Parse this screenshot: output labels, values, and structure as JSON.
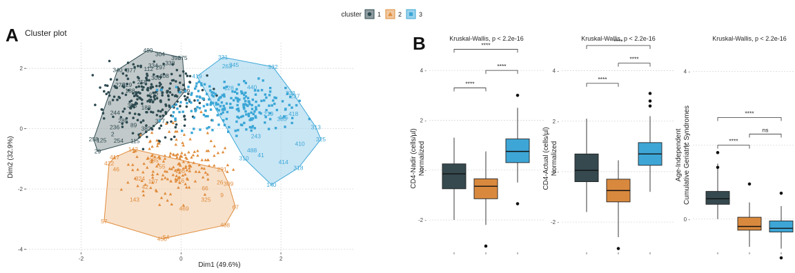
{
  "panels": {
    "a": "A",
    "b": "B"
  },
  "legend": {
    "title": "cluster",
    "items": [
      "1",
      "2",
      "3"
    ]
  },
  "colors": {
    "c1": "#2d4a50",
    "c2": "#e08b3a",
    "c3": "#3aa6d6",
    "fill1": "#8f9c9f",
    "fill2": "#f0c8a0",
    "fill3": "#9cd2ec",
    "box1": "#35494f",
    "box2": "#d9893e",
    "box3": "#3ea6d6"
  },
  "chart_data": [
    {
      "type": "scatter",
      "title": "Cluster plot",
      "xlabel": "Dim1 (49.6%)",
      "ylabel": "Dim2 (32.9%)",
      "xlim": [
        -3.1,
        3.45
      ],
      "ylim": [
        -4.1,
        2.85
      ],
      "xticks": [
        -2,
        0,
        2
      ],
      "yticks": [
        -4,
        -2,
        0,
        2
      ],
      "grid": true,
      "series": [
        {
          "name": "1",
          "marker": "circle",
          "labels": [
            {
              "t": "499",
              "x": -0.66,
              "y": 2.6
            },
            {
              "t": "304",
              "x": -0.42,
              "y": 2.47
            },
            {
              "t": "398",
              "x": -0.1,
              "y": 2.35
            },
            {
              "t": "375",
              "x": 0.03,
              "y": 2.35
            },
            {
              "t": "340",
              "x": -1.27,
              "y": 1.95
            },
            {
              "t": "377",
              "x": -1.0,
              "y": 1.93
            },
            {
              "t": "112",
              "x": -0.65,
              "y": 1.98
            },
            {
              "t": "334",
              "x": -0.56,
              "y": 2.1
            },
            {
              "t": "297",
              "x": -0.41,
              "y": 2.04
            },
            {
              "t": "338",
              "x": -0.22,
              "y": 2.18
            },
            {
              "t": "306",
              "x": -0.5,
              "y": 1.68
            },
            {
              "t": "408",
              "x": -0.34,
              "y": 1.75
            },
            {
              "t": "329",
              "x": -1.08,
              "y": 1.45
            },
            {
              "t": "258",
              "x": -0.78,
              "y": 1.55
            },
            {
              "t": "188",
              "x": -1.02,
              "y": 1.26
            },
            {
              "t": "8",
              "x": -1.43,
              "y": 0.85
            },
            {
              "t": "276",
              "x": -1.22,
              "y": 1.45
            },
            {
              "t": "244",
              "x": -1.32,
              "y": 0.53
            },
            {
              "t": "358",
              "x": -0.98,
              "y": 0.77
            },
            {
              "t": "285",
              "x": -1.16,
              "y": 0.27
            },
            {
              "t": "272",
              "x": -0.55,
              "y": 1.12
            },
            {
              "t": "188",
              "x": -0.7,
              "y": 0.7
            },
            {
              "t": "236",
              "x": -1.33,
              "y": 0.05
            },
            {
              "t": "2",
              "x": -1.37,
              "y": -0.18
            },
            {
              "t": "89",
              "x": -0.95,
              "y": 0.12
            },
            {
              "t": "258",
              "x": -1.75,
              "y": -0.35
            },
            {
              "t": "125",
              "x": -1.59,
              "y": -0.38
            },
            {
              "t": "254",
              "x": -1.25,
              "y": -0.4
            },
            {
              "t": "115",
              "x": -0.92,
              "y": -0.41
            },
            {
              "t": "29",
              "x": -1.67,
              "y": -0.75
            },
            {
              "t": "259",
              "x": 0.08,
              "y": 1.25
            },
            {
              "t": "382",
              "x": -0.7,
              "y": 0.0
            },
            {
              "t": "377",
              "x": -0.42,
              "y": 0.25
            }
          ]
        },
        {
          "name": "2",
          "marker": "triangle",
          "labels": [
            {
              "t": "142",
              "x": -0.96,
              "y": -0.68
            },
            {
              "t": "417",
              "x": -1.33,
              "y": -0.95
            },
            {
              "t": "422",
              "x": -1.44,
              "y": -1.15
            },
            {
              "t": "46",
              "x": -1.3,
              "y": -1.35
            },
            {
              "t": "385",
              "x": -0.55,
              "y": -1.05
            },
            {
              "t": "55",
              "x": -0.38,
              "y": -1.25
            },
            {
              "t": "324",
              "x": -0.82,
              "y": -1.65
            },
            {
              "t": "107",
              "x": -0.56,
              "y": -1.75
            },
            {
              "t": "42",
              "x": -0.72,
              "y": -1.93
            },
            {
              "t": "143",
              "x": -0.93,
              "y": -2.35
            },
            {
              "t": "136",
              "x": -0.02,
              "y": -1.4
            },
            {
              "t": "16",
              "x": 0.0,
              "y": -1.72
            },
            {
              "t": "291",
              "x": 0.82,
              "y": -1.35
            },
            {
              "t": "26",
              "x": 0.78,
              "y": -1.78
            },
            {
              "t": "309",
              "x": 0.95,
              "y": -1.82
            },
            {
              "t": "66",
              "x": 0.48,
              "y": -1.97
            },
            {
              "t": "9",
              "x": 0.82,
              "y": -2.2
            },
            {
              "t": "325",
              "x": 0.5,
              "y": -2.35
            },
            {
              "t": "469",
              "x": 0.06,
              "y": -2.65
            },
            {
              "t": "57",
              "x": -1.54,
              "y": -3.07
            },
            {
              "t": "67",
              "x": 1.09,
              "y": -2.6
            },
            {
              "t": "408",
              "x": 0.88,
              "y": -3.2
            },
            {
              "t": "450",
              "x": -0.38,
              "y": -3.65
            },
            {
              "t": "54",
              "x": -0.3,
              "y": -3.6
            }
          ]
        },
        {
          "name": "3",
          "marker": "square",
          "labels": [
            {
              "t": "331",
              "x": 0.84,
              "y": 2.37
            },
            {
              "t": "345",
              "x": 1.06,
              "y": 2.12
            },
            {
              "t": "263",
              "x": 0.92,
              "y": 2.07
            },
            {
              "t": "332",
              "x": 1.84,
              "y": 2.05
            },
            {
              "t": "419",
              "x": 0.32,
              "y": 1.74
            },
            {
              "t": "128",
              "x": 0.96,
              "y": 1.35
            },
            {
              "t": "440",
              "x": 1.42,
              "y": 1.38
            },
            {
              "t": "233",
              "x": 2.19,
              "y": 1.18
            },
            {
              "t": "237",
              "x": 2.28,
              "y": 1.08
            },
            {
              "t": "445",
              "x": 2.05,
              "y": 0.38
            },
            {
              "t": "418",
              "x": 2.25,
              "y": 0.5
            },
            {
              "t": "313",
              "x": 2.7,
              "y": 0.05
            },
            {
              "t": "325",
              "x": 2.8,
              "y": -0.35
            },
            {
              "t": "410",
              "x": 2.38,
              "y": -0.5
            },
            {
              "t": "488",
              "x": 1.42,
              "y": -0.72
            },
            {
              "t": "41",
              "x": 1.6,
              "y": -0.88
            },
            {
              "t": "310",
              "x": 1.26,
              "y": -0.98
            },
            {
              "t": "414",
              "x": 2.05,
              "y": -1.1
            },
            {
              "t": "318",
              "x": 2.35,
              "y": -1.3
            },
            {
              "t": "140",
              "x": 1.81,
              "y": -1.86
            },
            {
              "t": "243",
              "x": 1.5,
              "y": -0.25
            },
            {
              "t": "383",
              "x": 2.02,
              "y": 0.32
            },
            {
              "t": "219",
              "x": 1.75,
              "y": 0.5
            }
          ]
        }
      ]
    },
    {
      "type": "box",
      "title": "Kruskal-Wallis, p < 2.2e-16",
      "ylabel_lines": [
        "CD4-Nadir (cells/µl)",
        "Normalized"
      ],
      "ylim": [
        -3.3,
        5.0
      ],
      "yticks": [
        -2,
        0,
        2,
        4
      ],
      "grid": true,
      "boxes": [
        {
          "cluster": "1",
          "min": -2.0,
          "q1": -0.75,
          "median": -0.15,
          "q3": 0.25,
          "max": 1.3,
          "outliers": []
        },
        {
          "cluster": "2",
          "min": -2.2,
          "q1": -1.15,
          "median": -0.65,
          "q3": -0.35,
          "max": 0.75,
          "outliers": [
            -3.05
          ]
        },
        {
          "cluster": "3",
          "min": -0.5,
          "q1": 0.3,
          "median": 0.75,
          "q3": 1.25,
          "max": 2.5,
          "outliers": [
            3.0,
            -1.35
          ]
        }
      ],
      "brackets": [
        {
          "from": 1,
          "to": 2,
          "y": 3.3,
          "label": "****"
        },
        {
          "from": 2,
          "to": 3,
          "y": 4.0,
          "label": "****"
        },
        {
          "from": 1,
          "to": 3,
          "y": 4.85,
          "label": "****"
        }
      ]
    },
    {
      "type": "box",
      "title": "Kruskal-Wallis, p < 2.2e-16",
      "ylabel_lines": [
        "CD4-Actual (cells/µl)",
        "Normalized"
      ],
      "ylim": [
        -3.2,
        5.0
      ],
      "yticks": [
        -2,
        0,
        2,
        4
      ],
      "grid": true,
      "boxes": [
        {
          "cluster": "1",
          "min": -1.6,
          "q1": -0.4,
          "median": 0.05,
          "q3": 0.7,
          "max": 2.1,
          "outliers": []
        },
        {
          "cluster": "2",
          "min": -2.6,
          "q1": -1.2,
          "median": -0.75,
          "q3": -0.3,
          "max": 0.45,
          "outliers": [
            -3.05
          ]
        },
        {
          "cluster": "3",
          "min": -0.8,
          "q1": 0.25,
          "median": 0.7,
          "q3": 1.15,
          "max": 2.2,
          "outliers": [
            3.1,
            2.8,
            2.6
          ]
        }
      ],
      "brackets": [
        {
          "from": 1,
          "to": 2,
          "y": 3.5,
          "label": "****"
        },
        {
          "from": 2,
          "to": 3,
          "y": 4.3,
          "label": "****"
        },
        {
          "from": 1,
          "to": 3,
          "y": 5.0,
          "label": "****"
        }
      ]
    },
    {
      "type": "box",
      "title": "Kruskal-Wallis, p < 2.2e-16",
      "ylabel_lines": [
        "Age-Independent",
        "Cumulative Geriatric Syndromes"
      ],
      "ylim": [
        -0.9,
        4.7
      ],
      "yticks": [
        0,
        2,
        4
      ],
      "grid": true,
      "boxes": [
        {
          "cluster": "1",
          "min": 0.0,
          "q1": 0.4,
          "median": 0.55,
          "q3": 0.75,
          "max": 1.5,
          "outliers": [
            1.8,
            1.4
          ]
        },
        {
          "cluster": "2",
          "min": -0.75,
          "q1": -0.3,
          "median": -0.2,
          "q3": 0.05,
          "max": 0.45,
          "outliers": [
            0.95
          ]
        },
        {
          "cluster": "3",
          "min": -0.8,
          "q1": -0.35,
          "median": -0.25,
          "q3": -0.05,
          "max": 0.35,
          "outliers": [
            0.7,
            -1.05
          ]
        }
      ],
      "brackets": [
        {
          "from": 1,
          "to": 2,
          "y": 2.0,
          "label": "****"
        },
        {
          "from": 2,
          "to": 3,
          "y": 2.3,
          "label": "ns"
        },
        {
          "from": 1,
          "to": 3,
          "y": 2.75,
          "label": "****"
        }
      ]
    }
  ]
}
